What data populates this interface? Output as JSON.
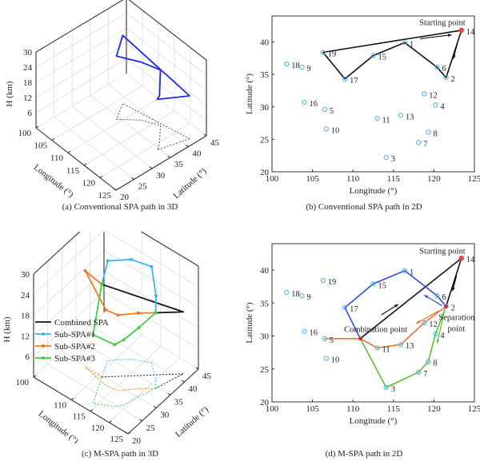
{
  "chart_data": [
    {
      "type": "line3d",
      "panel": "a",
      "caption": "(a) Conventional SPA path in 3D",
      "xlabel": "Longitude (°)",
      "ylabel": "Latitude (°)",
      "zlabel": "H (km)",
      "xlim": [
        100,
        125
      ],
      "ylim": [
        20,
        45
      ],
      "zlim": [
        0,
        30
      ],
      "xticks": [
        100,
        105,
        110,
        115,
        120,
        125
      ],
      "yticks": [
        20,
        25,
        30,
        35,
        40,
        45
      ],
      "zticks": [
        6,
        12,
        18,
        24,
        30
      ],
      "series": [
        {
          "name": "Conventional SPA",
          "color": "#1a2ee0",
          "marker": false,
          "points": [
            [
              123.4,
              41.8,
              17
            ],
            [
              121.5,
              34.5,
              20
            ],
            [
              120.4,
              36.1,
              19
            ],
            [
              116.4,
              39.9,
              22
            ],
            [
              112.5,
              37.9,
              23
            ],
            [
              109.0,
              34.3,
              25
            ],
            [
              106.3,
              38.4,
              27
            ],
            [
              123.4,
              41.8,
              17
            ]
          ]
        }
      ],
      "projection_color": "#555555"
    },
    {
      "type": "scatter_path",
      "panel": "b",
      "caption": "(b) Conventional SPA path in 2D",
      "xlabel": "Longitude (°)",
      "ylabel": "Latitude (°)",
      "xlim": [
        100,
        125
      ],
      "ylim": [
        20,
        44
      ],
      "xticks": [
        100,
        105,
        110,
        115,
        120,
        125
      ],
      "yticks": [
        20,
        25,
        30,
        35,
        40
      ],
      "points": [
        {
          "id": "1",
          "lon": 116.4,
          "lat": 39.9
        },
        {
          "id": "2",
          "lon": 121.5,
          "lat": 34.5
        },
        {
          "id": "3",
          "lon": 114.1,
          "lat": 22.2
        },
        {
          "id": "4",
          "lon": 120.2,
          "lat": 30.3
        },
        {
          "id": "5",
          "lon": 106.5,
          "lat": 29.6
        },
        {
          "id": "6",
          "lon": 120.4,
          "lat": 36.1
        },
        {
          "id": "7",
          "lon": 118.1,
          "lat": 24.5
        },
        {
          "id": "8",
          "lon": 119.3,
          "lat": 26.1
        },
        {
          "id": "9",
          "lon": 103.7,
          "lat": 36.1
        },
        {
          "id": "10",
          "lon": 106.7,
          "lat": 26.6
        },
        {
          "id": "11",
          "lon": 113.0,
          "lat": 28.2
        },
        {
          "id": "12",
          "lon": 118.8,
          "lat": 32.0
        },
        {
          "id": "13",
          "lon": 115.9,
          "lat": 28.7
        },
        {
          "id": "14",
          "lon": 123.4,
          "lat": 41.8
        },
        {
          "id": "15",
          "lon": 112.5,
          "lat": 37.9
        },
        {
          "id": "16",
          "lon": 104.0,
          "lat": 30.7
        },
        {
          "id": "17",
          "lon": 109.0,
          "lat": 34.3
        },
        {
          "id": "18",
          "lon": 101.8,
          "lat": 36.6
        },
        {
          "id": "19",
          "lon": 106.3,
          "lat": 38.4
        }
      ],
      "paths": [
        {
          "name": "Conventional SPA",
          "color": "#111111",
          "route": [
            "14",
            "2",
            "6",
            "1",
            "15",
            "17",
            "19",
            "14"
          ]
        }
      ],
      "arrows": [
        {
          "color": "#111111",
          "from": [
            118.3,
            40.5
          ],
          "to": [
            122.2,
            41.1
          ]
        },
        {
          "color": "#111111",
          "from": [
            122.9,
            39.8
          ],
          "to": [
            122.4,
            37.4
          ]
        }
      ],
      "annotations": [
        {
          "text": "Starting point",
          "lon": 118.2,
          "lat": 42.6
        }
      ],
      "highlight": [
        "14"
      ]
    },
    {
      "type": "line3d",
      "panel": "c",
      "caption": "(c) M-SPA path in 3D",
      "xlabel": "Longitude (°)",
      "ylabel": "Latitude (°)",
      "zlabel": "H (km)",
      "xlim": [
        100,
        125
      ],
      "ylim": [
        20,
        45
      ],
      "zlim": [
        0,
        30
      ],
      "xticks": [
        100,
        110,
        115,
        120,
        125
      ],
      "yticks": [
        20,
        25,
        30,
        35,
        40,
        45
      ],
      "zticks": [
        6,
        12,
        18,
        24,
        30
      ],
      "legend": {
        "placement": "center-left",
        "entries": [
          "Combined SPA",
          "Sub-SPA#1",
          "Sub-SPA#2",
          "Sub-SPA#3"
        ]
      },
      "series": [
        {
          "name": "Combined SPA",
          "color": "#111111",
          "marker": false,
          "points": [
            [
              110.9,
              29.6,
              27
            ],
            [
              123.4,
              41.8,
              18
            ],
            [
              121.5,
              34.5,
              22
            ]
          ]
        },
        {
          "name": "Sub-SPA#1",
          "color": "#3cb4f0",
          "marker": true,
          "points": [
            [
              121.5,
              34.5,
              22
            ],
            [
              120.4,
              36.1,
              25
            ],
            [
              116.4,
              39.9,
              28
            ],
            [
              112.5,
              37.9,
              29
            ],
            [
              109.0,
              34.3,
              29
            ],
            [
              110.9,
              29.6,
              27
            ]
          ]
        },
        {
          "name": "Sub-SPA#2",
          "color": "#f07820",
          "marker": true,
          "points": [
            [
              121.5,
              34.5,
              22
            ],
            [
              118.8,
              32.0,
              22
            ],
            [
              115.9,
              28.7,
              22
            ],
            [
              113.0,
              28.2,
              22
            ],
            [
              106.5,
              29.6,
              28
            ],
            [
              110.9,
              29.6,
              27
            ]
          ]
        },
        {
          "name": "Sub-SPA#3",
          "color": "#3fd03a",
          "marker": true,
          "points": [
            [
              121.5,
              34.5,
              22
            ],
            [
              120.2,
              30.3,
              20
            ],
            [
              119.3,
              26.1,
              19
            ],
            [
              118.1,
              24.5,
              18
            ],
            [
              114.1,
              22.2,
              20
            ],
            [
              110.9,
              29.6,
              27
            ]
          ]
        }
      ]
    },
    {
      "type": "scatter_path",
      "panel": "d",
      "caption": "(d) M-SPA path in 2D",
      "xlabel": "Longitude (°)",
      "ylabel": "Latitude (°)",
      "xlim": [
        100,
        125
      ],
      "ylim": [
        20,
        44
      ],
      "xticks": [
        100,
        105,
        110,
        115,
        120,
        125
      ],
      "yticks": [
        20,
        25,
        30,
        35,
        40
      ],
      "points": [
        {
          "id": "1",
          "lon": 116.4,
          "lat": 39.9
        },
        {
          "id": "2",
          "lon": 121.5,
          "lat": 34.5
        },
        {
          "id": "3",
          "lon": 114.1,
          "lat": 22.2
        },
        {
          "id": "4",
          "lon": 120.2,
          "lat": 30.3
        },
        {
          "id": "5",
          "lon": 106.5,
          "lat": 29.6
        },
        {
          "id": "6",
          "lon": 120.4,
          "lat": 36.1
        },
        {
          "id": "7",
          "lon": 118.1,
          "lat": 24.5
        },
        {
          "id": "8",
          "lon": 119.3,
          "lat": 26.1
        },
        {
          "id": "9",
          "lon": 103.7,
          "lat": 36.1
        },
        {
          "id": "10",
          "lon": 106.7,
          "lat": 26.6
        },
        {
          "id": "11",
          "lon": 113.0,
          "lat": 28.2
        },
        {
          "id": "12",
          "lon": 118.8,
          "lat": 32.0
        },
        {
          "id": "13",
          "lon": 115.9,
          "lat": 28.7
        },
        {
          "id": "14",
          "lon": 123.4,
          "lat": 41.8
        },
        {
          "id": "15",
          "lon": 112.5,
          "lat": 37.9
        },
        {
          "id": "16",
          "lon": 104.0,
          "lat": 30.7
        },
        {
          "id": "17",
          "lon": 109.0,
          "lat": 34.3
        },
        {
          "id": "18",
          "lon": 101.8,
          "lat": 36.6
        },
        {
          "id": "19",
          "lon": 106.3,
          "lat": 38.4
        },
        {
          "id": "C",
          "lon": 110.9,
          "lat": 29.6,
          "hidden": true
        }
      ],
      "paths": [
        {
          "name": "Combined SPA",
          "color": "#111111",
          "route": [
            "C",
            "14",
            "2"
          ]
        },
        {
          "name": "Sub-SPA#1",
          "color": "#2a4fe0",
          "route": [
            "2",
            "6",
            "1",
            "15",
            "17",
            "C"
          ]
        },
        {
          "name": "Sub-SPA#2",
          "color": "#f07030",
          "route": [
            "2",
            "12",
            "13",
            "11",
            "C",
            "5",
            "C"
          ]
        },
        {
          "name": "Sub-SPA#3",
          "color": "#5cc030",
          "route": [
            "2",
            "4",
            "8",
            "7",
            "3",
            "C"
          ]
        }
      ],
      "arrows": [
        {
          "color": "#111111",
          "from": [
            122.8,
            39.2
          ],
          "to": [
            122.3,
            36.8
          ]
        },
        {
          "color": "#111111",
          "from": [
            113.5,
            33.2
          ],
          "to": [
            115.6,
            34.8
          ]
        },
        {
          "color": "#2a4fe0",
          "from": [
            121.0,
            34.6
          ],
          "to": [
            118.8,
            36.2
          ]
        },
        {
          "color": "#f07030",
          "from": [
            120.6,
            33.8
          ],
          "to": [
            117.8,
            31.9
          ]
        },
        {
          "color": "#5cc030",
          "from": [
            121.3,
            33.8
          ],
          "to": [
            120.4,
            28.9
          ]
        }
      ],
      "annotations": [
        {
          "text": "Starting point",
          "lon": 118.2,
          "lat": 42.5
        },
        {
          "text": "Separation",
          "lon": 120.2,
          "lat": 33.5
        },
        {
          "text": "point",
          "lon": 121.3,
          "lat": 31.8
        },
        {
          "text": "Combination point",
          "lon": 108.9,
          "lat": 30.6
        }
      ],
      "highlight": [
        "14",
        "2",
        "C"
      ]
    }
  ]
}
